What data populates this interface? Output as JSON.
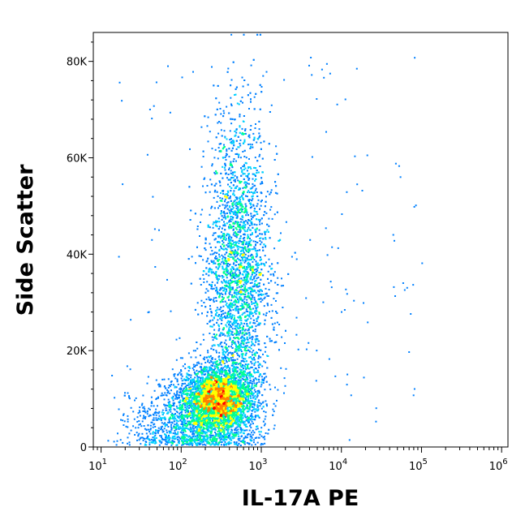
{
  "chart_data": {
    "type": "scatter",
    "style": "density-colored flow cytometry dot plot",
    "xlabel": "IL-17A PE",
    "ylabel": "Side Scatter",
    "x_scale": "log",
    "x_range": [
      8,
      1200000
    ],
    "x_ticks": [
      {
        "value": 10,
        "base": "10",
        "exp": "1"
      },
      {
        "value": 100,
        "base": "10",
        "exp": "2"
      },
      {
        "value": 1000,
        "base": "10",
        "exp": "3"
      },
      {
        "value": 10000,
        "base": "10",
        "exp": "4"
      },
      {
        "value": 100000,
        "base": "10",
        "exp": "5"
      },
      {
        "value": 1000000,
        "base": "10",
        "exp": "6"
      }
    ],
    "y_scale": "linear",
    "y_range": [
      0,
      86000
    ],
    "y_ticks": [
      {
        "value": 0,
        "label": "0"
      },
      {
        "value": 20000,
        "label": "20K"
      },
      {
        "value": 40000,
        "label": "40K"
      },
      {
        "value": 60000,
        "label": "60K"
      },
      {
        "value": 80000,
        "label": "80K"
      }
    ],
    "grid": false,
    "legend": "none",
    "density_colors": [
      "#0000ff",
      "#0080ff",
      "#00d0ff",
      "#00ff90",
      "#ffff00",
      "#ff8000",
      "#ff0000"
    ],
    "populations": [
      {
        "name": "",
        "x_center": 280,
        "y_center": 10000,
        "x_spread_decades": 0.22,
        "y_spread": 3500,
        "weight": 0.42
      },
      {
        "name": "",
        "x_center": 500,
        "y_center": 35000,
        "x_spread_decades": 0.2,
        "y_spread": 16000,
        "weight": 0.45
      },
      {
        "name": "",
        "x_center": 120,
        "y_center": 5000,
        "x_spread_decades": 0.35,
        "y_spread": 4000,
        "weight": 0.13
      }
    ]
  }
}
